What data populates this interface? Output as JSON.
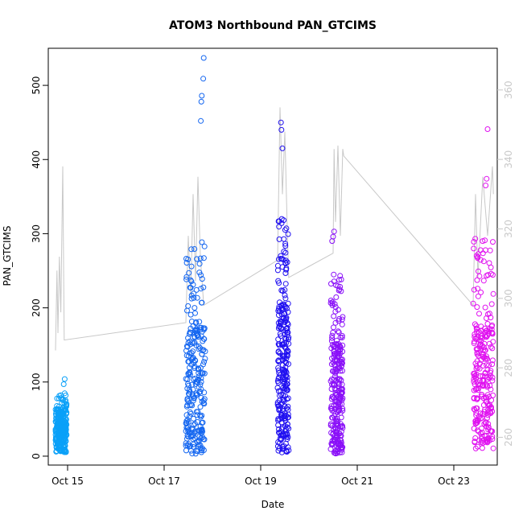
{
  "chart_data": {
    "type": "scatter",
    "title": "ATOM3 Northbound PAN_GTCIMS",
    "xlabel": "Date",
    "ylabel": "PAN_GTCIMS",
    "x_axis": {
      "type": "date",
      "ticks": [
        "Oct 15",
        "Oct 17",
        "Oct 19",
        "Oct 21",
        "Oct 23"
      ],
      "range_days": [
        14.6,
        23.9
      ]
    },
    "y_axis": {
      "ticks": [
        "0",
        "100",
        "200",
        "300",
        "400",
        "500"
      ],
      "range": [
        -12,
        550
      ]
    },
    "y_axis_right": {
      "ticks": [
        "260",
        "280",
        "300",
        "320",
        "340",
        "360"
      ],
      "range": [
        252,
        372
      ]
    },
    "grid": false,
    "colors": {
      "line": "#c8c8c8",
      "right_axis": "#c8c8c8",
      "axis": "#000000"
    },
    "series": [
      {
        "date_start": "Oct 14.75",
        "date_end": "Oct 14.98",
        "day_start": 14.75,
        "day_end": 14.98,
        "y_low": 5,
        "y_high": 85,
        "y_mid": 40,
        "max_points": [
          [
            14.94,
            104
          ],
          [
            14.92,
            97
          ]
        ],
        "color": "#0aa0f8"
      },
      {
        "date_start": "Oct 17.45",
        "date_end": "Oct 17.85",
        "day_start": 17.45,
        "day_end": 17.85,
        "y_low": 3,
        "y_high": 290,
        "y_mid": 110,
        "max_points": [
          [
            17.82,
            537
          ],
          [
            17.81,
            509
          ],
          [
            17.78,
            486
          ],
          [
            17.77,
            478
          ],
          [
            17.76,
            452
          ]
        ],
        "color": "#1466f0"
      },
      {
        "date_start": "Oct 19.35",
        "date_end": "Oct 19.58",
        "day_start": 19.35,
        "day_end": 19.58,
        "y_low": 5,
        "y_high": 320,
        "y_mid": 130,
        "max_points": [
          [
            19.42,
            450
          ],
          [
            19.43,
            440
          ],
          [
            19.45,
            415
          ]
        ],
        "color": "#2010f0"
      },
      {
        "date_start": "Oct 20.45",
        "date_end": "Oct 20.7",
        "day_start": 20.45,
        "day_end": 20.7,
        "y_low": 3,
        "y_high": 245,
        "y_mid": 95,
        "max_points": [
          [
            20.52,
            303
          ],
          [
            20.5,
            296
          ],
          [
            20.48,
            290
          ]
        ],
        "color": "#8a10f8"
      },
      {
        "date_start": "Oct 23.4",
        "date_end": "Oct 23.82",
        "day_start": 23.4,
        "day_end": 23.82,
        "y_low": 10,
        "y_high": 300,
        "y_mid": 110,
        "max_points": [
          [
            23.7,
            441
          ],
          [
            23.68,
            374
          ],
          [
            23.66,
            365
          ]
        ],
        "color": "#e010f0"
      }
    ],
    "line_series": {
      "axis": "right",
      "points": [
        [
          14.75,
          285
        ],
        [
          14.78,
          308
        ],
        [
          14.8,
          290
        ],
        [
          14.83,
          312
        ],
        [
          14.86,
          296
        ],
        [
          14.9,
          338
        ],
        [
          14.93,
          288
        ],
        [
          17.45,
          293
        ],
        [
          17.5,
          318
        ],
        [
          17.55,
          300
        ],
        [
          17.6,
          330
        ],
        [
          17.65,
          305
        ],
        [
          17.7,
          335
        ],
        [
          17.75,
          312
        ],
        [
          17.82,
          298
        ],
        [
          19.35,
          311
        ],
        [
          19.4,
          355
        ],
        [
          19.45,
          330
        ],
        [
          19.5,
          348
        ],
        [
          19.55,
          320
        ],
        [
          19.58,
          306
        ],
        [
          20.5,
          313
        ],
        [
          20.52,
          343
        ],
        [
          20.55,
          322
        ],
        [
          20.6,
          344
        ],
        [
          20.65,
          318
        ],
        [
          20.7,
          343
        ],
        [
          20.72,
          341
        ],
        [
          23.4,
          298
        ],
        [
          23.45,
          330
        ],
        [
          23.5,
          306
        ],
        [
          23.6,
          335
        ],
        [
          23.7,
          318
        ],
        [
          23.8,
          338
        ],
        [
          23.82,
          330
        ]
      ]
    }
  }
}
